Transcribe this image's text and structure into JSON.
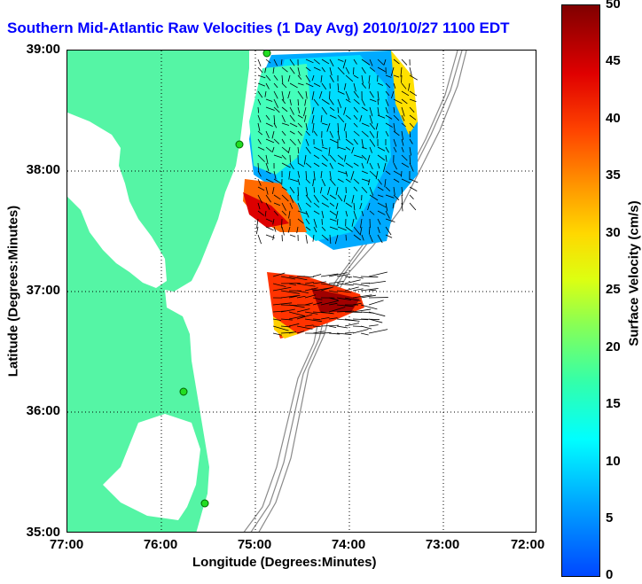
{
  "title": "Southern Mid-Atlantic Raw Velocities (1 Day Avg) 2010/10/27 1100 EDT",
  "axes": {
    "x_title": "Longitude (Degrees:Minutes)",
    "y_title": "Latitude (Degrees:Minutes)",
    "x_ticks": [
      "77:00",
      "76:00",
      "75:00",
      "74:00",
      "73:00",
      "72:00"
    ],
    "y_ticks": [
      "39:00",
      "38:00",
      "37:00",
      "36:00",
      "35:00"
    ]
  },
  "colorbar": {
    "title": "Surface Velocity (cm/s)",
    "ticks": [
      "50",
      "45",
      "40",
      "35",
      "30",
      "25",
      "20",
      "15",
      "10",
      "5",
      "0"
    ],
    "range": [
      0,
      50
    ]
  },
  "colors": {
    "land": "#55f5a5",
    "title": "#0000ff",
    "bathymetry": "#8a8a8a",
    "station": "#22dd22"
  }
}
